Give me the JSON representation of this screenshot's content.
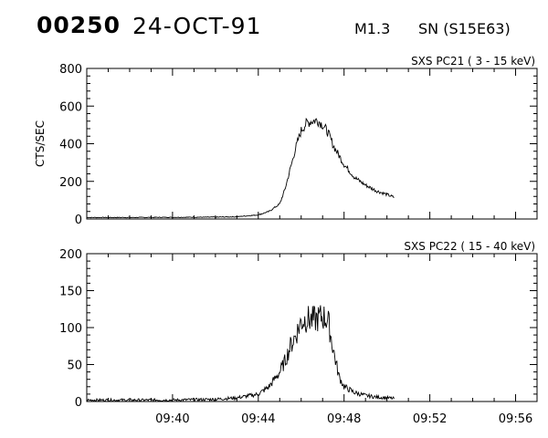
{
  "header": {
    "event_id": "00250",
    "date": "24-OCT-91",
    "flare_class": "M1.3",
    "location": "SN (S15E63)"
  },
  "chart_data": [
    {
      "type": "line",
      "title": "SXS PC21  (  3 - 15 keV)",
      "ylabel": "CTS/SEC",
      "xlabel": "",
      "xlim": [
        "09:36",
        "09:57"
      ],
      "ylim": [
        0,
        800
      ],
      "yticks": [
        0,
        200,
        400,
        600,
        800
      ],
      "xticks": [
        "09:40",
        "09:44",
        "09:48",
        "09:52",
        "09:56"
      ],
      "series": [
        {
          "x": [
            "09:36:00",
            "09:38:00",
            "09:40:00",
            "09:42:00",
            "09:43:00",
            "09:44:00",
            "09:44:30",
            "09:45:00",
            "09:45:15",
            "09:45:30",
            "09:45:45",
            "09:46:00",
            "09:46:15",
            "09:46:30",
            "09:46:45",
            "09:47:00",
            "09:47:15",
            "09:47:30",
            "09:48:00",
            "09:48:30",
            "09:49:00",
            "09:49:30",
            "09:50:00",
            "09:50:20"
          ],
          "y": [
            8,
            8,
            9,
            10,
            12,
            22,
            40,
            80,
            160,
            270,
            380,
            470,
            510,
            520,
            525,
            500,
            460,
            390,
            290,
            220,
            180,
            150,
            130,
            115
          ]
        }
      ]
    },
    {
      "type": "line",
      "title": "SXS PC22  ( 15 - 40 keV)",
      "ylabel": "",
      "xlabel": "",
      "xlim": [
        "09:36",
        "09:57"
      ],
      "ylim": [
        0,
        200
      ],
      "yticks": [
        0,
        50,
        100,
        150,
        200
      ],
      "xticks": [
        "09:40",
        "09:44",
        "09:48",
        "09:52",
        "09:56"
      ],
      "series": [
        {
          "x": [
            "09:36:00",
            "09:38:00",
            "09:40:00",
            "09:42:00",
            "09:43:00",
            "09:44:00",
            "09:44:30",
            "09:45:00",
            "09:45:15",
            "09:45:30",
            "09:45:45",
            "09:46:00",
            "09:46:15",
            "09:46:30",
            "09:46:45",
            "09:47:00",
            "09:47:15",
            "09:47:30",
            "09:47:45",
            "09:48:00",
            "09:48:30",
            "09:49:00",
            "09:49:30",
            "09:50:00",
            "09:50:20"
          ],
          "y": [
            2,
            2,
            2,
            3,
            5,
            10,
            20,
            40,
            55,
            75,
            90,
            108,
            112,
            110,
            112,
            115,
            110,
            70,
            35,
            20,
            12,
            8,
            6,
            5,
            4
          ]
        }
      ]
    }
  ]
}
